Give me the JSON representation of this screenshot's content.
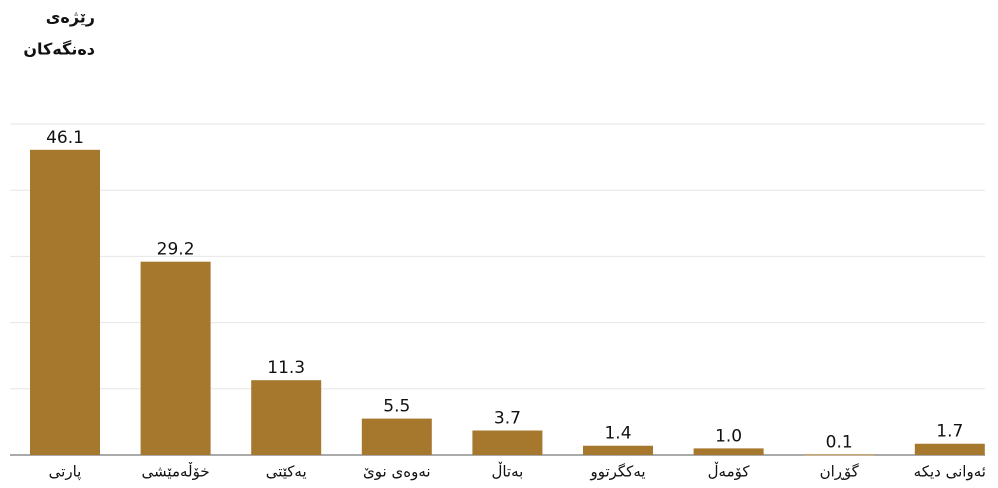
{
  "chart_data": {
    "type": "bar",
    "ylabel": [
      "رێژەی",
      "دەنگەکان"
    ],
    "categories": [
      "پارتی",
      "خۆڵەمێشی",
      "یەکێتی",
      "نەوەی نوێ",
      "بەتاڵ",
      "یەکگرتوو",
      "کۆمەڵ",
      "گۆڕان",
      "ئەوانی دیکە"
    ],
    "values": [
      46.1,
      29.2,
      11.3,
      5.5,
      3.7,
      1.4,
      1.0,
      0.1,
      1.7
    ],
    "value_labels": [
      "46.1",
      "29.2",
      "11.3",
      "5.5",
      "3.7",
      "1.4",
      "1.0",
      "0.1",
      "1.7"
    ],
    "color": "#a6782e",
    "ylim": [
      0,
      50
    ],
    "yticks": [
      0,
      10,
      20,
      30,
      40,
      50
    ],
    "grid": true
  }
}
